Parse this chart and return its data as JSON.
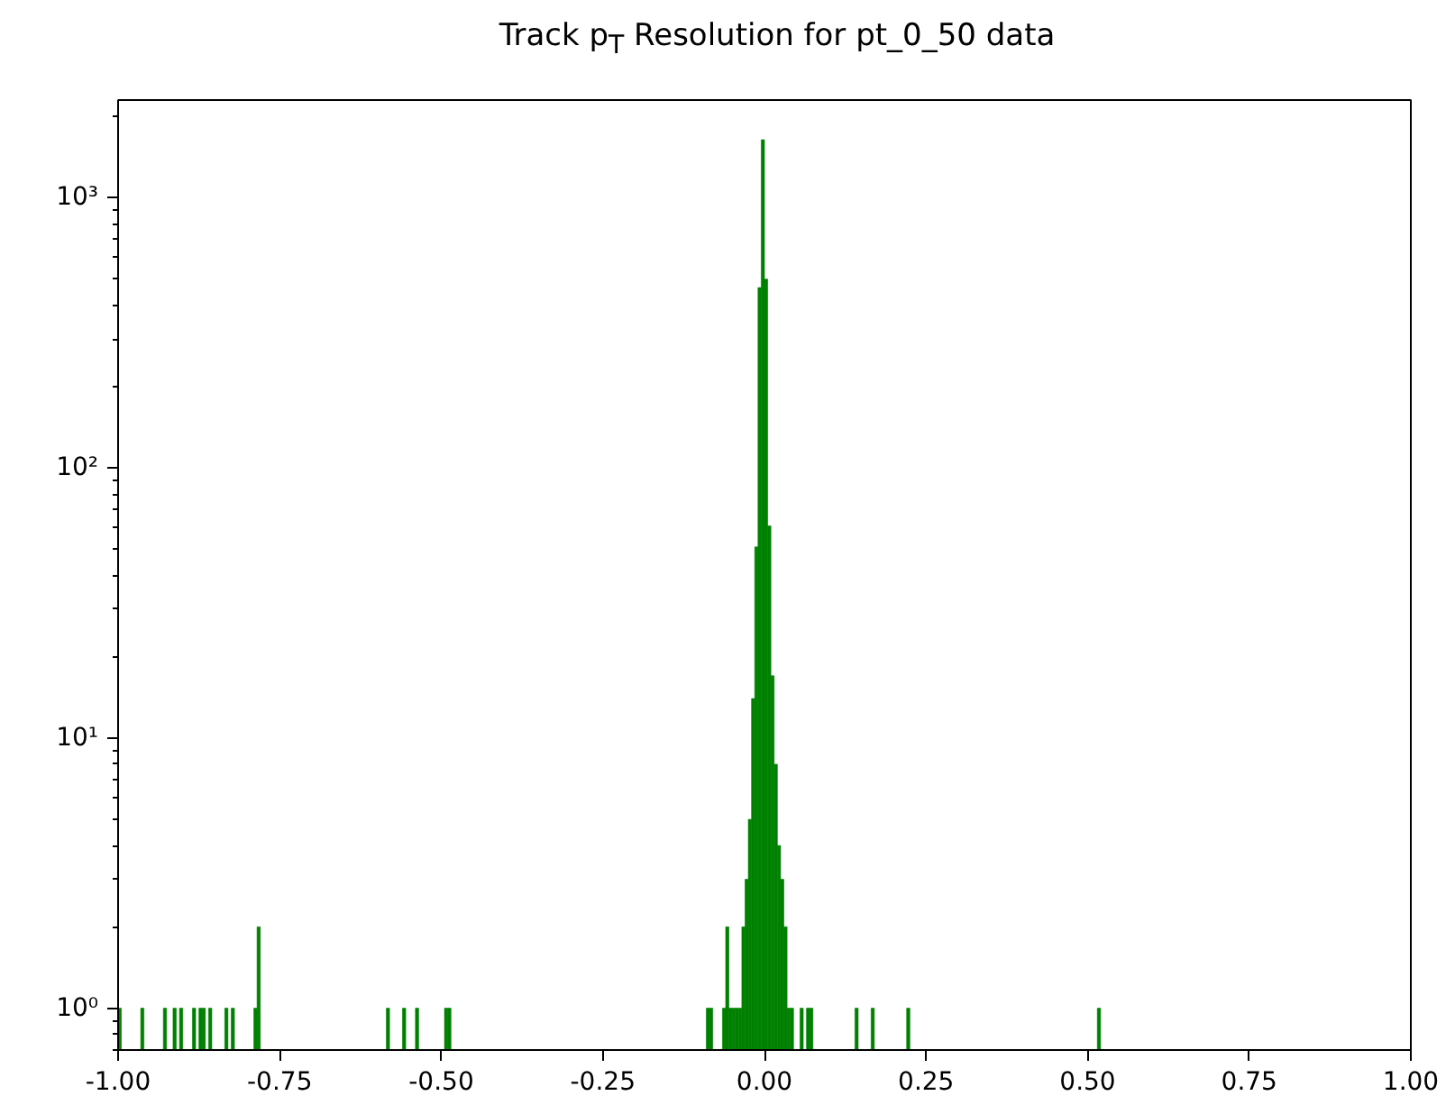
{
  "chart_data": {
    "type": "histogram",
    "title": "Track p$_{T}$ Resolution for pt_0_50 data",
    "bins": [
      -1.0,
      -0.995,
      -0.965,
      -0.96,
      -0.93,
      -0.925,
      -0.915,
      -0.91,
      -0.905,
      -0.9,
      -0.885,
      -0.88,
      -0.875,
      -0.87,
      -0.865,
      -0.86,
      -0.855,
      -0.835,
      -0.83,
      -0.825,
      -0.82,
      -0.79,
      -0.785,
      -0.78,
      -0.585,
      -0.58,
      -0.56,
      -0.555,
      -0.54,
      -0.535,
      -0.495,
      -0.49,
      -0.485,
      -0.09,
      -0.085,
      -0.08,
      -0.065,
      -0.06,
      -0.055,
      -0.05,
      -0.045,
      -0.04,
      -0.035,
      -0.03,
      -0.025,
      -0.02,
      -0.015,
      -0.01,
      -0.005,
      0.0,
      0.005,
      0.01,
      0.015,
      0.02,
      0.025,
      0.03,
      0.035,
      0.04,
      0.045,
      0.055,
      0.06,
      0.065,
      0.07,
      0.075,
      0.14,
      0.145,
      0.165,
      0.17,
      0.22,
      0.225,
      0.515,
      0.52
    ],
    "values": [
      1,
      null,
      1,
      null,
      1,
      null,
      1,
      null,
      1,
      null,
      1,
      null,
      1,
      1,
      null,
      1,
      null,
      1,
      null,
      1,
      null,
      1,
      2,
      null,
      1,
      null,
      1,
      null,
      1,
      null,
      1,
      1,
      null,
      1,
      1,
      null,
      1,
      2,
      1,
      1,
      1,
      1,
      2,
      3,
      5,
      14,
      51,
      465,
      1640,
      500,
      61,
      17,
      8,
      4,
      3,
      2,
      1,
      1,
      null,
      1,
      null,
      1,
      1,
      null,
      1,
      null,
      1,
      null,
      1,
      null,
      1
    ],
    "color": "#008000",
    "log": "y",
    "xlim": [
      -1.0,
      1.0
    ],
    "xticks": [
      {
        "value": -1.0,
        "label": "-1.00"
      },
      {
        "value": -0.75,
        "label": "-0.75"
      },
      {
        "value": -0.5,
        "label": "-0.50"
      },
      {
        "value": -0.25,
        "label": "-0.25"
      },
      {
        "value": 0.0,
        "label": "0.00"
      },
      {
        "value": 0.25,
        "label": "0.25"
      },
      {
        "value": 0.5,
        "label": "0.50"
      },
      {
        "value": 0.75,
        "label": "0.75"
      },
      {
        "value": 1.0,
        "label": "1.00"
      }
    ],
    "ylim": [
      0.7,
      2300
    ],
    "yticks": [
      {
        "value": 1,
        "label": "10⁰"
      },
      {
        "value": 10,
        "label": "10¹"
      },
      {
        "value": 100,
        "label": "10²"
      },
      {
        "value": 1000,
        "label": "10³"
      }
    ],
    "grid": false
  }
}
